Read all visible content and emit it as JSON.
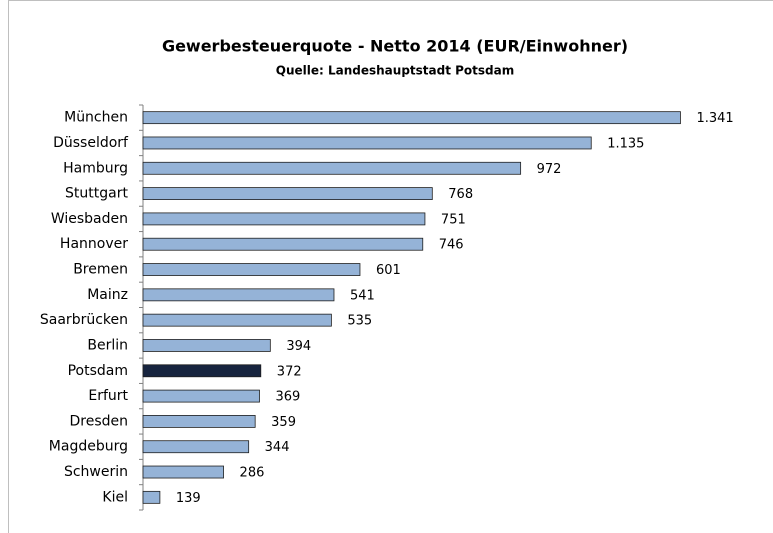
{
  "chart_data": {
    "type": "hbar",
    "title": "Gewerbesteuerquote - Netto 2014 (EUR/Einwohner)",
    "subtitle": "Quelle: Landeshauptstadt Potsdam",
    "categories": [
      "München",
      "Düsseldorf",
      "Hamburg",
      "Stuttgart",
      "Wiesbaden",
      "Hannover",
      "Bremen",
      "Mainz",
      "Saarbrücken",
      "Berlin",
      "Potsdam",
      "Erfurt",
      "Dresden",
      "Magdeburg",
      "Schwerin",
      "Kiel"
    ],
    "values": [
      1341,
      1135,
      972,
      768,
      751,
      746,
      601,
      541,
      535,
      394,
      372,
      369,
      359,
      344,
      286,
      139
    ],
    "value_labels": [
      "1.341",
      "1.135",
      "972",
      "768",
      "751",
      "746",
      "601",
      "541",
      "535",
      "394",
      "372",
      "369",
      "359",
      "344",
      "286",
      "139"
    ],
    "colors": [
      "#95b3d7",
      "#95b3d7",
      "#95b3d7",
      "#95b3d7",
      "#95b3d7",
      "#95b3d7",
      "#95b3d7",
      "#95b3d7",
      "#95b3d7",
      "#95b3d7",
      "#17243f",
      "#95b3d7",
      "#95b3d7",
      "#95b3d7",
      "#95b3d7",
      "#95b3d7"
    ],
    "xlim": [
      100,
      1400
    ]
  }
}
